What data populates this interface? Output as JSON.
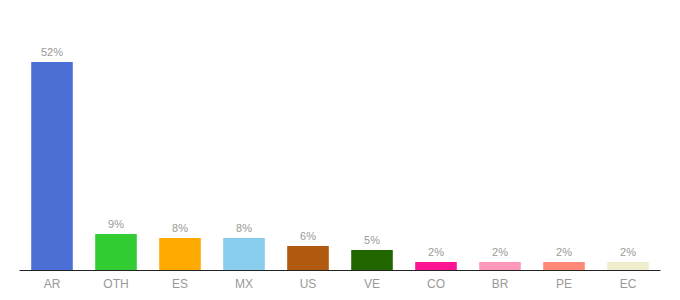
{
  "chart_data": {
    "type": "bar",
    "categories": [
      "AR",
      "OTH",
      "ES",
      "MX",
      "US",
      "VE",
      "CO",
      "BR",
      "PE",
      "EC"
    ],
    "values": [
      52,
      9,
      8,
      8,
      6,
      5,
      2,
      2,
      2,
      2
    ],
    "value_labels": [
      "52%",
      "9%",
      "8%",
      "8%",
      "6%",
      "5%",
      "2%",
      "2%",
      "2%",
      "2%"
    ],
    "colors": [
      "#4b6fd4",
      "#33cc33",
      "#ffaa00",
      "#88ccee",
      "#b05a10",
      "#226600",
      "#ff1493",
      "#ff99bb",
      "#ff8877",
      "#eeeecc"
    ],
    "ylim": [
      0,
      60
    ],
    "tick_labels": "x",
    "grid": false,
    "data_labels": true
  }
}
